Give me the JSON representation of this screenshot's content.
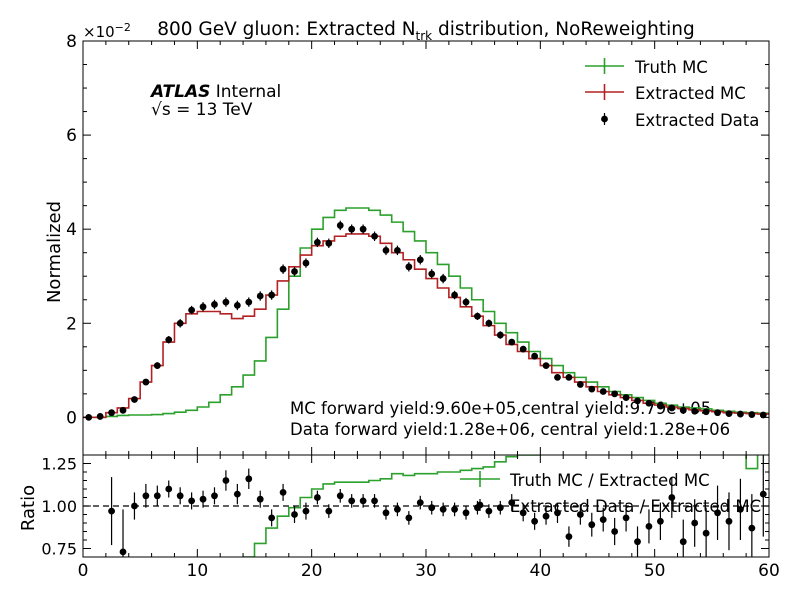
{
  "chart_data": [
    {
      "type": "line",
      "title_main": "800 GeV gluon: Extracted N",
      "title_sub": "trk",
      "title_rest": " distribution, NoReweighting",
      "ylabel": "Normalized",
      "y_scale_label": "×10",
      "y_scale_exp": "−2",
      "xlim": [
        0,
        60
      ],
      "ylim": [
        -0.8,
        8
      ],
      "yticks": [
        0,
        2,
        4,
        6,
        8
      ],
      "atlas_label": "ATLAS",
      "atlas_status": "Internal",
      "energy_prefix": "√s = ",
      "energy_value": "13 TeV",
      "annotations": [
        "MC forward yield:9.60e+05,central yield:9.79e+05",
        "Data forward yield:1.28e+06, central yield:1.28e+06"
      ],
      "legend": [
        {
          "label": "Truth MC",
          "color": "#2ca02c",
          "style": "step"
        },
        {
          "label": "Extracted MC",
          "color": "#b22222",
          "style": "step"
        },
        {
          "label": "Extracted Data",
          "color": "#000000",
          "style": "points"
        }
      ],
      "series": [
        {
          "name": "Truth MC",
          "x": [
            0,
            1,
            2,
            3,
            4,
            5,
            6,
            7,
            8,
            9,
            10,
            11,
            12,
            13,
            14,
            15,
            16,
            17,
            18,
            19,
            20,
            21,
            22,
            23,
            24,
            25,
            26,
            27,
            28,
            29,
            30,
            31,
            32,
            33,
            34,
            35,
            36,
            37,
            38,
            39,
            40,
            41,
            42,
            43,
            44,
            45,
            46,
            47,
            48,
            49,
            50,
            51,
            52,
            53,
            54,
            55,
            56,
            57,
            58,
            59
          ],
          "values": [
            0.0,
            0.0,
            0.02,
            0.04,
            0.05,
            0.05,
            0.06,
            0.08,
            0.11,
            0.15,
            0.22,
            0.32,
            0.48,
            0.65,
            0.9,
            1.2,
            1.7,
            2.3,
            3.0,
            3.6,
            4.0,
            4.25,
            4.4,
            4.45,
            4.45,
            4.4,
            4.3,
            4.15,
            3.95,
            3.75,
            3.5,
            3.25,
            3.0,
            2.75,
            2.5,
            2.25,
            2.0,
            1.8,
            1.6,
            1.4,
            1.25,
            1.1,
            0.95,
            0.85,
            0.75,
            0.65,
            0.55,
            0.48,
            0.42,
            0.36,
            0.3,
            0.26,
            0.22,
            0.2,
            0.18,
            0.15,
            0.13,
            0.11,
            0.1,
            0.09
          ]
        },
        {
          "name": "Extracted MC",
          "x": [
            0,
            1,
            2,
            3,
            4,
            5,
            6,
            7,
            8,
            9,
            10,
            11,
            12,
            13,
            14,
            15,
            16,
            17,
            18,
            19,
            20,
            21,
            22,
            23,
            24,
            25,
            26,
            27,
            28,
            29,
            30,
            31,
            32,
            33,
            34,
            35,
            36,
            37,
            38,
            39,
            40,
            41,
            42,
            43,
            44,
            45,
            46,
            47,
            48,
            49,
            50,
            51,
            52,
            53,
            54,
            55,
            56,
            57,
            58,
            59
          ],
          "values": [
            0.0,
            0.0,
            0.1,
            0.2,
            0.4,
            0.75,
            1.1,
            1.6,
            2.0,
            2.2,
            2.25,
            2.25,
            2.2,
            2.1,
            2.15,
            2.3,
            2.6,
            2.9,
            3.2,
            3.45,
            3.65,
            3.75,
            3.85,
            3.9,
            3.9,
            3.85,
            3.7,
            3.5,
            3.35,
            3.15,
            2.95,
            2.75,
            2.55,
            2.35,
            2.15,
            1.95,
            1.75,
            1.55,
            1.4,
            1.25,
            1.1,
            0.95,
            0.85,
            0.75,
            0.65,
            0.55,
            0.48,
            0.42,
            0.36,
            0.3,
            0.26,
            0.22,
            0.19,
            0.16,
            0.14,
            0.12,
            0.1,
            0.09,
            0.08,
            0.07
          ]
        },
        {
          "name": "Extracted Data",
          "x": [
            0.5,
            1.5,
            2.5,
            3.5,
            4.5,
            5.5,
            6.5,
            7.5,
            8.5,
            9.5,
            10.5,
            11.5,
            12.5,
            13.5,
            14.5,
            15.5,
            16.5,
            17.5,
            18.5,
            19.5,
            20.5,
            21.5,
            22.5,
            23.5,
            24.5,
            25.5,
            26.5,
            27.5,
            28.5,
            29.5,
            30.5,
            31.5,
            32.5,
            33.5,
            34.5,
            35.5,
            36.5,
            37.5,
            38.5,
            39.5,
            40.5,
            41.5,
            42.5,
            43.5,
            44.5,
            45.5,
            46.5,
            47.5,
            48.5,
            49.5,
            50.5,
            51.5,
            52.5,
            53.5,
            54.5,
            55.5,
            56.5,
            57.5,
            58.5,
            59.5
          ],
          "values": [
            0.0,
            0.02,
            0.1,
            0.15,
            0.38,
            0.75,
            1.1,
            1.65,
            2.0,
            2.28,
            2.35,
            2.4,
            2.45,
            2.38,
            2.45,
            2.58,
            2.6,
            3.15,
            3.1,
            3.28,
            3.72,
            3.7,
            4.08,
            4.0,
            4.0,
            3.85,
            3.55,
            3.55,
            3.2,
            3.35,
            3.05,
            2.95,
            2.6,
            2.45,
            2.15,
            2.0,
            1.75,
            1.6,
            1.45,
            1.3,
            1.1,
            0.85,
            0.85,
            0.7,
            0.6,
            0.55,
            0.5,
            0.42,
            0.35,
            0.3,
            0.25,
            0.2,
            0.15,
            0.13,
            0.12,
            0.1,
            0.08,
            0.07,
            0.06,
            0.05
          ],
          "errors": [
            0.05,
            0.05,
            0.05,
            0.05,
            0.06,
            0.06,
            0.07,
            0.08,
            0.09,
            0.09,
            0.1,
            0.1,
            0.1,
            0.1,
            0.1,
            0.1,
            0.1,
            0.1,
            0.1,
            0.1,
            0.1,
            0.1,
            0.1,
            0.1,
            0.1,
            0.1,
            0.1,
            0.1,
            0.1,
            0.1,
            0.1,
            0.1,
            0.09,
            0.09,
            0.08,
            0.08,
            0.08,
            0.07,
            0.07,
            0.07,
            0.06,
            0.06,
            0.06,
            0.05,
            0.05,
            0.05,
            0.05,
            0.05,
            0.05,
            0.04,
            0.04,
            0.04,
            0.04,
            0.04,
            0.04,
            0.04,
            0.04,
            0.04,
            0.04,
            0.04
          ]
        }
      ]
    },
    {
      "type": "line",
      "ylabel": "Ratio",
      "xlabel": "",
      "xlim": [
        0,
        60
      ],
      "ylim": [
        0.7,
        1.3
      ],
      "yticks": [
        0.75,
        1.0,
        1.25
      ],
      "ytick_labels": [
        "0.75",
        "1.00",
        "1.25"
      ],
      "xticks": [
        0,
        10,
        20,
        30,
        40,
        50,
        60
      ],
      "reference_line": 1.0,
      "legend": [
        {
          "label": "Truth MC / Extracted MC",
          "color": "#2ca02c",
          "style": "step"
        },
        {
          "label": "Extracted Data / Extracted MC",
          "color": "#000000",
          "style": "points"
        }
      ],
      "series": [
        {
          "name": "Truth MC / Extracted MC",
          "x": [
            14,
            15,
            16,
            17,
            18,
            19,
            20,
            21,
            22,
            23,
            24,
            25,
            26,
            27,
            28,
            29,
            30,
            31,
            32,
            33,
            34,
            35,
            36,
            37,
            38,
            39,
            40,
            41,
            42,
            43,
            44,
            45,
            46,
            47,
            48,
            49,
            50,
            51,
            52,
            53,
            54,
            55,
            56,
            57,
            58,
            59
          ],
          "values": [
            0.7,
            0.78,
            0.87,
            0.94,
            0.99,
            1.05,
            1.1,
            1.13,
            1.14,
            1.14,
            1.14,
            1.15,
            1.16,
            1.19,
            1.18,
            1.19,
            1.19,
            1.2,
            1.2,
            1.21,
            1.22,
            1.23,
            1.26,
            1.29,
            1.3,
            1.3,
            1.32,
            1.33,
            1.32,
            1.33,
            1.35,
            1.35,
            1.36,
            1.38,
            1.38,
            1.4,
            1.38,
            1.4,
            1.36,
            1.4,
            1.32,
            1.34,
            1.32,
            1.36,
            1.22,
            1.34
          ]
        },
        {
          "name": "Extracted Data / Extracted MC",
          "x": [
            2.5,
            3.5,
            4.5,
            5.5,
            6.5,
            7.5,
            8.5,
            9.5,
            10.5,
            11.5,
            12.5,
            13.5,
            14.5,
            15.5,
            16.5,
            17.5,
            18.5,
            19.5,
            20.5,
            21.5,
            22.5,
            23.5,
            24.5,
            25.5,
            26.5,
            27.5,
            28.5,
            29.5,
            30.5,
            31.5,
            32.5,
            33.5,
            34.5,
            35.5,
            36.5,
            37.5,
            38.5,
            39.5,
            40.5,
            41.5,
            42.5,
            43.5,
            44.5,
            45.5,
            46.5,
            47.5,
            48.5,
            49.5,
            50.5,
            51.5,
            52.5,
            53.5,
            54.5,
            55.5,
            56.5,
            57.5,
            58.5,
            59.5
          ],
          "values": [
            0.97,
            0.73,
            1.0,
            1.06,
            1.06,
            1.1,
            1.06,
            1.03,
            1.04,
            1.06,
            1.15,
            1.07,
            1.16,
            1.04,
            0.93,
            1.08,
            0.95,
            0.97,
            1.05,
            0.97,
            1.06,
            1.03,
            1.03,
            1.03,
            0.96,
            0.98,
            0.93,
            1.02,
            0.99,
            0.98,
            0.98,
            0.96,
            0.99,
            0.97,
            0.99,
            1.02,
            0.96,
            0.91,
            0.94,
            0.96,
            0.82,
            0.95,
            0.89,
            0.92,
            0.85,
            0.93,
            0.79,
            0.88,
            0.91,
            1.05,
            0.79,
            0.9,
            0.84,
            0.96,
            0.91,
            0.98,
            0.87,
            1.07
          ],
          "errors": [
            0.2,
            0.25,
            0.08,
            0.07,
            0.06,
            0.05,
            0.05,
            0.05,
            0.05,
            0.05,
            0.06,
            0.06,
            0.06,
            0.05,
            0.05,
            0.05,
            0.05,
            0.05,
            0.04,
            0.04,
            0.04,
            0.04,
            0.04,
            0.04,
            0.04,
            0.04,
            0.04,
            0.04,
            0.04,
            0.04,
            0.04,
            0.04,
            0.04,
            0.04,
            0.04,
            0.05,
            0.05,
            0.05,
            0.05,
            0.06,
            0.06,
            0.06,
            0.07,
            0.07,
            0.08,
            0.08,
            0.09,
            0.1,
            0.11,
            0.12,
            0.13,
            0.14,
            0.15,
            0.16,
            0.17,
            0.18,
            0.2,
            0.25
          ]
        }
      ]
    }
  ]
}
